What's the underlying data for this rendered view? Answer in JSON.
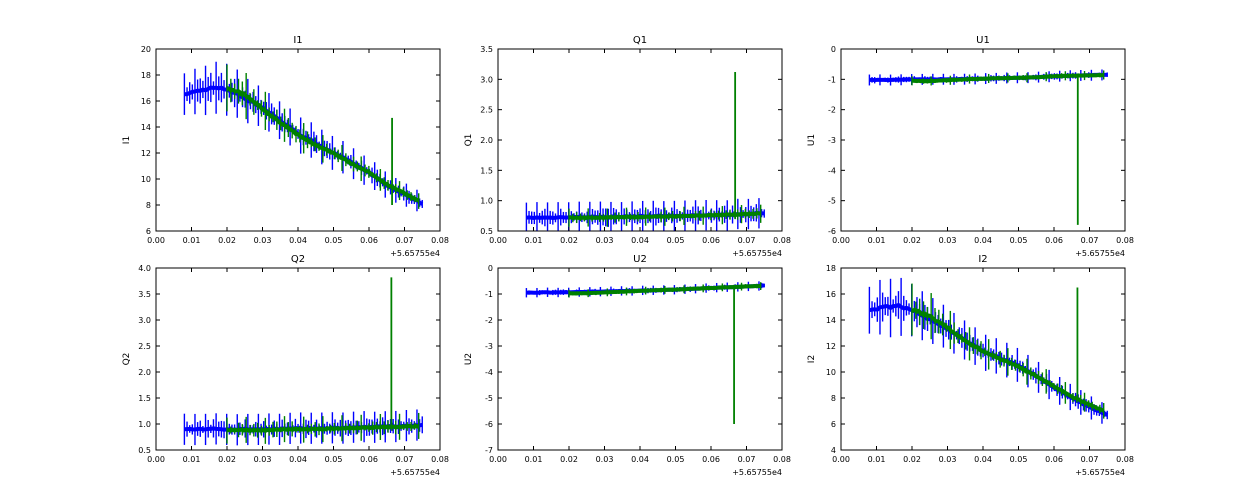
{
  "colors": {
    "series_1": "#0000ff",
    "series_2": "#008000"
  },
  "chart_data": [
    {
      "type": "line",
      "title": "I1",
      "ylabel": "I1",
      "xlim": [
        0.0,
        0.08
      ],
      "ylim": [
        6,
        20
      ],
      "xticks": [
        "0.00",
        "0.01",
        "0.02",
        "0.03",
        "0.04",
        "0.05",
        "0.06",
        "0.07",
        "0.08"
      ],
      "yticks": [
        "6",
        "8",
        "10",
        "12",
        "14",
        "16",
        "18",
        "20"
      ],
      "x_offset_label": "+5.65755e4",
      "series": [
        {
          "color": "#0000ff",
          "x": [
            0.008,
            0.012,
            0.016,
            0.02,
            0.03,
            0.04,
            0.05,
            0.055,
            0.06,
            0.065,
            0.07,
            0.075
          ],
          "y": [
            16.5,
            16.8,
            17.0,
            16.9,
            15.5,
            13.5,
            12.0,
            11.3,
            10.5,
            9.5,
            8.8,
            8.1
          ],
          "err": [
            1.6,
            1.8,
            2.0,
            2.0,
            1.5,
            1.4,
            1.3,
            1.2,
            1.1,
            1.0,
            0.9,
            0.8
          ]
        },
        {
          "color": "#008000",
          "x": [
            0.02,
            0.025,
            0.03,
            0.035,
            0.04,
            0.045,
            0.05,
            0.055,
            0.06,
            0.065,
            0.07,
            0.074
          ],
          "y": [
            17.0,
            16.5,
            15.4,
            14.3,
            13.4,
            12.6,
            12.0,
            11.2,
            10.5,
            9.6,
            8.9,
            8.3
          ],
          "err": [
            1.8,
            1.8,
            1.5,
            1.3,
            1.2,
            1.1,
            1.0,
            1.0,
            0.9,
            0.8,
            0.7,
            0.6
          ],
          "spike": {
            "x": 0.0665,
            "y0": 8.0,
            "y1": 14.7
          }
        }
      ]
    },
    {
      "type": "line",
      "title": "Q1",
      "ylabel": "Q1",
      "xlim": [
        0.0,
        0.08
      ],
      "ylim": [
        0.5,
        3.5
      ],
      "xticks": [
        "0.00",
        "0.01",
        "0.02",
        "0.03",
        "0.04",
        "0.05",
        "0.06",
        "0.07",
        "0.08"
      ],
      "yticks": [
        "0.5",
        "1.0",
        "1.5",
        "2.0",
        "2.5",
        "3.0",
        "3.5"
      ],
      "x_offset_label": "+5.65755e4",
      "series": [
        {
          "color": "#0000ff",
          "x": [
            0.008,
            0.015,
            0.02,
            0.03,
            0.04,
            0.05,
            0.055,
            0.06,
            0.065,
            0.07,
            0.075
          ],
          "y": [
            0.72,
            0.72,
            0.73,
            0.73,
            0.74,
            0.75,
            0.75,
            0.76,
            0.77,
            0.78,
            0.79
          ],
          "err": [
            0.25,
            0.25,
            0.25,
            0.25,
            0.25,
            0.25,
            0.25,
            0.25,
            0.25,
            0.25,
            0.25
          ]
        },
        {
          "color": "#008000",
          "x": [
            0.02,
            0.025,
            0.03,
            0.035,
            0.04,
            0.045,
            0.05,
            0.055,
            0.06,
            0.065,
            0.07,
            0.074
          ],
          "y": [
            0.72,
            0.72,
            0.72,
            0.73,
            0.73,
            0.74,
            0.74,
            0.75,
            0.76,
            0.77,
            0.78,
            0.79
          ],
          "err": [
            0.15,
            0.15,
            0.15,
            0.15,
            0.15,
            0.15,
            0.15,
            0.15,
            0.15,
            0.15,
            0.15,
            0.15
          ],
          "spike": {
            "x": 0.0668,
            "y0": 0.7,
            "y1": 3.12
          }
        }
      ]
    },
    {
      "type": "line",
      "title": "U1",
      "ylabel": "U1",
      "xlim": [
        0.0,
        0.08
      ],
      "ylim": [
        -6,
        0
      ],
      "xticks": [
        "0.00",
        "0.01",
        "0.02",
        "0.03",
        "0.04",
        "0.05",
        "0.06",
        "0.07",
        "0.08"
      ],
      "yticks": [
        "-6",
        "-5",
        "-4",
        "-3",
        "-2",
        "-1",
        "0"
      ],
      "x_offset_label": "+5.65755e4",
      "series": [
        {
          "color": "#0000ff",
          "x": [
            0.008,
            0.015,
            0.02,
            0.03,
            0.04,
            0.05,
            0.055,
            0.06,
            0.065,
            0.07,
            0.075
          ],
          "y": [
            -1.02,
            -1.02,
            -1.0,
            -1.0,
            -0.98,
            -0.95,
            -0.93,
            -0.9,
            -0.88,
            -0.86,
            -0.85
          ],
          "err": [
            0.18,
            0.18,
            0.18,
            0.18,
            0.18,
            0.18,
            0.18,
            0.18,
            0.18,
            0.18,
            0.18
          ]
        },
        {
          "color": "#008000",
          "x": [
            0.02,
            0.025,
            0.03,
            0.035,
            0.04,
            0.045,
            0.05,
            0.055,
            0.06,
            0.065,
            0.07,
            0.074
          ],
          "y": [
            -1.05,
            -1.06,
            -1.03,
            -1.0,
            -0.98,
            -0.96,
            -0.95,
            -0.93,
            -0.9,
            -0.88,
            -0.87,
            -0.86
          ],
          "err": [
            0.15,
            0.15,
            0.15,
            0.15,
            0.15,
            0.15,
            0.15,
            0.15,
            0.15,
            0.15,
            0.15,
            0.15
          ],
          "spike": {
            "x": 0.0667,
            "y0": -0.9,
            "y1": -5.8
          }
        }
      ]
    },
    {
      "type": "line",
      "title": "Q2",
      "ylabel": "Q2",
      "xlim": [
        0.0,
        0.08
      ],
      "ylim": [
        0.5,
        4.0
      ],
      "xticks": [
        "0.00",
        "0.01",
        "0.02",
        "0.03",
        "0.04",
        "0.05",
        "0.06",
        "0.07",
        "0.08"
      ],
      "yticks": [
        "0.5",
        "1.0",
        "1.5",
        "2.0",
        "2.5",
        "3.0",
        "3.5",
        "4.0"
      ],
      "x_offset_label": "+5.65755e4",
      "series": [
        {
          "color": "#0000ff",
          "x": [
            0.008,
            0.015,
            0.02,
            0.03,
            0.04,
            0.05,
            0.055,
            0.06,
            0.065,
            0.07,
            0.075
          ],
          "y": [
            0.9,
            0.9,
            0.9,
            0.9,
            0.91,
            0.92,
            0.93,
            0.94,
            0.95,
            0.96,
            0.97
          ],
          "err": [
            0.3,
            0.3,
            0.3,
            0.3,
            0.3,
            0.3,
            0.3,
            0.3,
            0.3,
            0.3,
            0.3
          ]
        },
        {
          "color": "#008000",
          "x": [
            0.02,
            0.025,
            0.03,
            0.035,
            0.04,
            0.045,
            0.05,
            0.055,
            0.06,
            0.065,
            0.07,
            0.074
          ],
          "y": [
            0.88,
            0.88,
            0.88,
            0.89,
            0.9,
            0.9,
            0.91,
            0.92,
            0.93,
            0.94,
            0.95,
            0.96
          ],
          "err": [
            0.25,
            0.25,
            0.25,
            0.25,
            0.25,
            0.25,
            0.25,
            0.25,
            0.25,
            0.25,
            0.25,
            0.25
          ],
          "spike": {
            "x": 0.0663,
            "y0": 0.9,
            "y1": 3.82
          }
        }
      ]
    },
    {
      "type": "line",
      "title": "U2",
      "ylabel": "U2",
      "xlim": [
        0.0,
        0.08
      ],
      "ylim": [
        -7,
        0
      ],
      "xticks": [
        "0.00",
        "0.01",
        "0.02",
        "0.03",
        "0.04",
        "0.05",
        "0.06",
        "0.07",
        "0.08"
      ],
      "yticks": [
        "-7",
        "-6",
        "-5",
        "-4",
        "-3",
        "-2",
        "-1",
        "0"
      ],
      "x_offset_label": "+5.65755e4",
      "series": [
        {
          "color": "#0000ff",
          "x": [
            0.008,
            0.015,
            0.02,
            0.03,
            0.04,
            0.05,
            0.055,
            0.06,
            0.065,
            0.07,
            0.075
          ],
          "y": [
            -0.95,
            -0.94,
            -0.93,
            -0.9,
            -0.87,
            -0.83,
            -0.8,
            -0.77,
            -0.74,
            -0.71,
            -0.68
          ],
          "err": [
            0.18,
            0.18,
            0.18,
            0.18,
            0.18,
            0.18,
            0.18,
            0.18,
            0.18,
            0.18,
            0.18
          ]
        },
        {
          "color": "#008000",
          "x": [
            0.02,
            0.025,
            0.03,
            0.035,
            0.04,
            0.045,
            0.05,
            0.055,
            0.06,
            0.065,
            0.07,
            0.074
          ],
          "y": [
            -0.98,
            -0.97,
            -0.94,
            -0.91,
            -0.88,
            -0.85,
            -0.83,
            -0.8,
            -0.77,
            -0.74,
            -0.71,
            -0.69
          ],
          "err": [
            0.15,
            0.15,
            0.15,
            0.15,
            0.15,
            0.15,
            0.15,
            0.15,
            0.15,
            0.15,
            0.15,
            0.15
          ],
          "spike": {
            "x": 0.0665,
            "y0": -0.7,
            "y1": -6.0
          }
        }
      ]
    },
    {
      "type": "line",
      "title": "I2",
      "ylabel": "I2",
      "xlim": [
        0.0,
        0.08
      ],
      "ylim": [
        4,
        18
      ],
      "xticks": [
        "0.00",
        "0.01",
        "0.02",
        "0.03",
        "0.04",
        "0.05",
        "0.06",
        "0.07",
        "0.08"
      ],
      "yticks": [
        "4",
        "6",
        "8",
        "10",
        "12",
        "14",
        "16",
        "18"
      ],
      "x_offset_label": "+5.65755e4",
      "series": [
        {
          "color": "#0000ff",
          "x": [
            0.008,
            0.012,
            0.016,
            0.02,
            0.03,
            0.04,
            0.05,
            0.055,
            0.06,
            0.065,
            0.07,
            0.075
          ],
          "y": [
            14.7,
            15.0,
            15.1,
            14.8,
            13.3,
            11.6,
            10.5,
            9.7,
            8.8,
            8.0,
            7.3,
            6.7
          ],
          "err": [
            1.8,
            2.2,
            2.3,
            2.0,
            1.6,
            1.4,
            1.3,
            1.2,
            1.1,
            1.0,
            0.9,
            0.8
          ]
        },
        {
          "color": "#008000",
          "x": [
            0.02,
            0.025,
            0.03,
            0.035,
            0.04,
            0.045,
            0.05,
            0.055,
            0.06,
            0.065,
            0.07,
            0.074
          ],
          "y": [
            14.8,
            14.3,
            13.4,
            12.4,
            11.6,
            11.0,
            10.4,
            9.7,
            8.9,
            8.1,
            7.5,
            7.0
          ],
          "err": [
            2.0,
            1.8,
            1.5,
            1.3,
            1.2,
            1.1,
            1.0,
            1.0,
            0.9,
            0.8,
            0.7,
            0.6
          ],
          "spike": {
            "x": 0.0666,
            "y0": 7.8,
            "y1": 16.5
          }
        }
      ]
    }
  ]
}
